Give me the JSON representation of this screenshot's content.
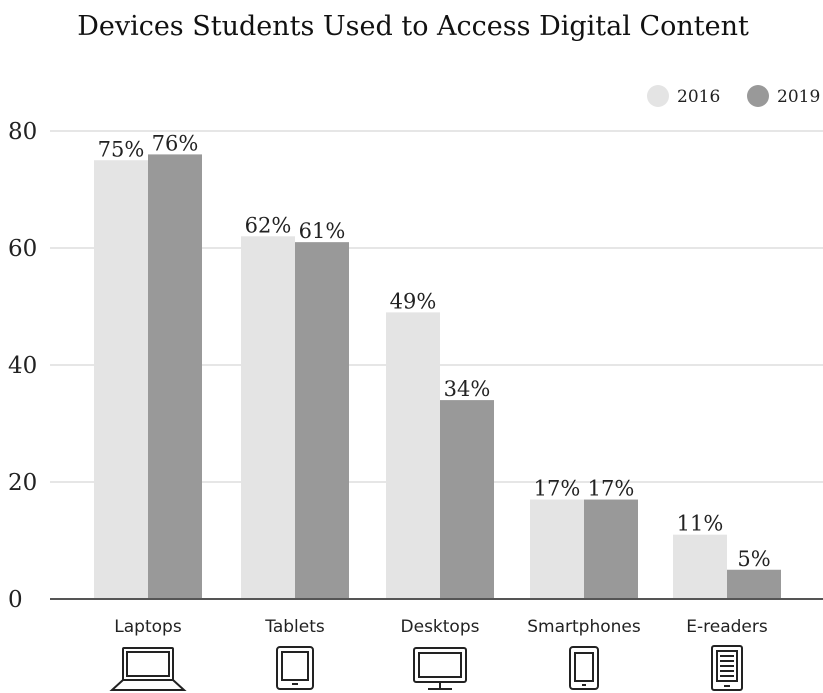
{
  "chart_data": {
    "type": "bar",
    "title": "Devices Students Used to Access Digital Content",
    "xlabel": "",
    "ylabel": "",
    "categories": [
      "Laptops",
      "Tablets",
      "Desktops",
      "Smartphones",
      "E-readers"
    ],
    "category_icons": [
      "laptop-icon",
      "tablet-icon",
      "desktop-monitor-icon",
      "smartphone-icon",
      "e-reader-icon"
    ],
    "series": [
      {
        "name": "2016",
        "values": [
          75,
          62,
          49,
          17,
          11
        ],
        "labels": [
          "75%",
          "62%",
          "49%",
          "17%",
          "11%"
        ],
        "color": "#e4e4e4"
      },
      {
        "name": "2019",
        "values": [
          76,
          61,
          34,
          17,
          5
        ],
        "labels": [
          "76%",
          "61%",
          "34%",
          "17%",
          "5%"
        ],
        "color": "#999999"
      }
    ],
    "ylim": [
      0,
      80
    ],
    "yticks": [
      "0",
      "20",
      "40",
      "60",
      "80"
    ],
    "grid": true,
    "legend_position": "top-right"
  }
}
